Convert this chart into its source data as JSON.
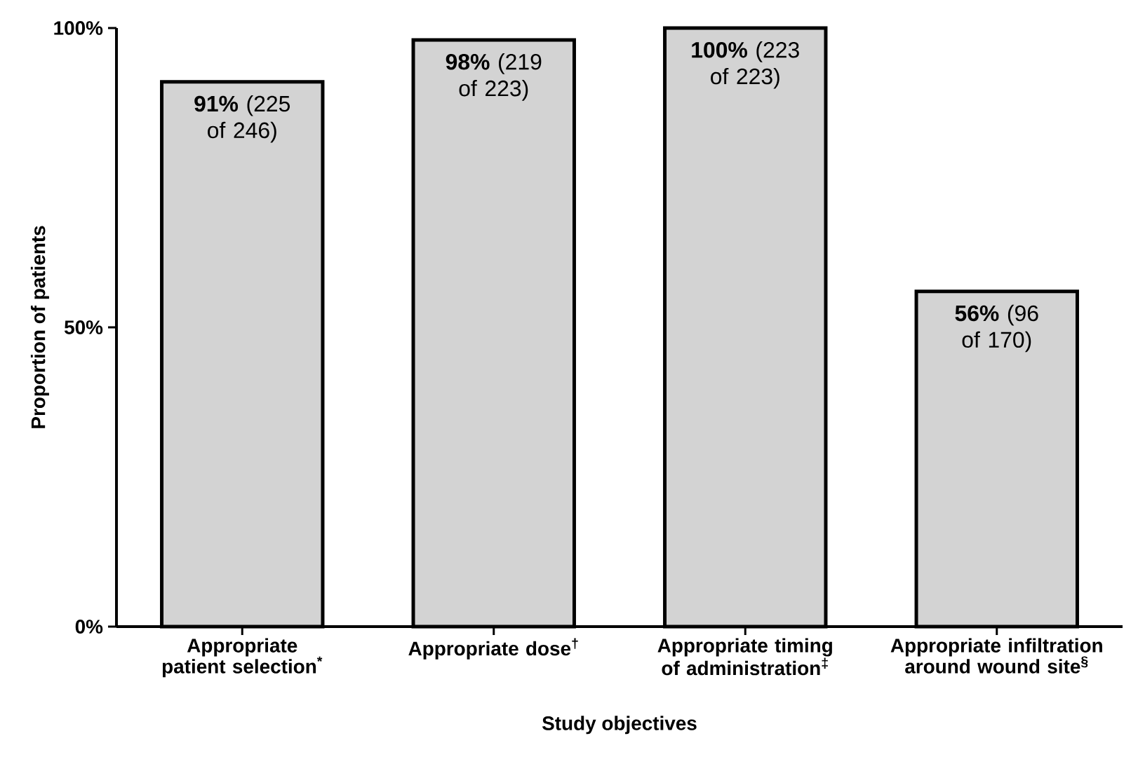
{
  "chart_data": {
    "type": "bar",
    "xlabel": "Study objectives",
    "ylabel": "Proportion of patients",
    "categories": [
      "Appropriate patient selection$^{*}$",
      "Appropriate dose$^{†}$",
      "Appropriate timing of administration$^{‡}$",
      "Appropriate infiltration around wound site$^{§}$"
    ],
    "values": [
      91,
      98,
      100,
      56
    ],
    "value_labels": [
      "**91%** (225 of 246)",
      "**98%** (219 of 223)",
      "**100%** (223 of 223)",
      "**56%** (96 of 170)"
    ],
    "color": "#d3d3d3",
    "ylim": [
      0,
      100
    ],
    "yticks": [
      {
        "value": 0,
        "label": "0%"
      },
      {
        "value": 50,
        "label": "50%"
      },
      {
        "value": 100,
        "label": "100%"
      }
    ]
  }
}
